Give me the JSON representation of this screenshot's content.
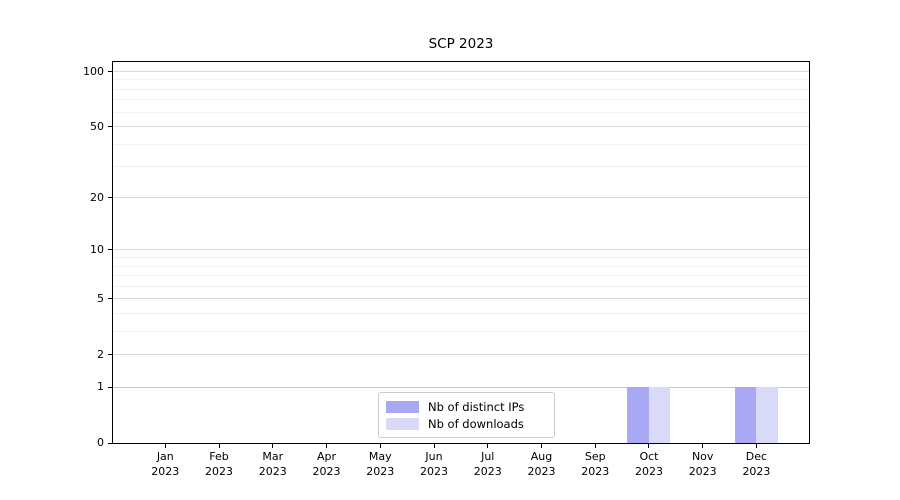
{
  "title": "SCP 2023",
  "legend": {
    "items": [
      {
        "label": "Nb of distinct IPs",
        "color": "#a8a8f5"
      },
      {
        "label": "Nb of downloads",
        "color": "#d9d9f8"
      }
    ]
  },
  "axes": {
    "y_tick_labels": [
      "100",
      "50",
      "20",
      "10",
      "5",
      "2",
      "1",
      "0"
    ],
    "x_tick_labels": [
      "Jan 2023",
      "Feb 2023",
      "Mar 2023",
      "Apr 2023",
      "May 2023",
      "Jun 2023",
      "Jul 2023",
      "Aug 2023",
      "Sep 2023",
      "Oct 2023",
      "Nov 2023",
      "Dec 2023"
    ]
  },
  "chart_data": {
    "type": "bar",
    "title": "SCP 2023",
    "categories": [
      "Jan 2023",
      "Feb 2023",
      "Mar 2023",
      "Apr 2023",
      "May 2023",
      "Jun 2023",
      "Jul 2023",
      "Aug 2023",
      "Sep 2023",
      "Oct 2023",
      "Nov 2023",
      "Dec 2023"
    ],
    "series": [
      {
        "name": "Nb of distinct IPs",
        "color": "#a8a8f5",
        "values": [
          0,
          0,
          0,
          0,
          0,
          0,
          0,
          0,
          0,
          1,
          0,
          1
        ]
      },
      {
        "name": "Nb of downloads",
        "color": "#d9d9f8",
        "values": [
          0,
          0,
          0,
          0,
          0,
          0,
          0,
          0,
          0,
          1,
          0,
          1
        ]
      }
    ],
    "xlabel": "",
    "ylabel": "",
    "yscale": "log1p (0 linear-compressed, log-like above 1)",
    "yticks": [
      0,
      1,
      2,
      5,
      10,
      20,
      50,
      100
    ],
    "minor_yticks": [
      3,
      4,
      6,
      7,
      8,
      9,
      30,
      40,
      60,
      70,
      80,
      90
    ],
    "ylim": [
      0,
      113
    ],
    "grid": "horizontal, major + faint minor",
    "legend_position": "lower center",
    "colors": {
      "major_grid": "#dbdbdb",
      "minor_grid": "#f1f1f1",
      "unit_grid": "#c6c6c6",
      "axis": "#000000"
    }
  }
}
